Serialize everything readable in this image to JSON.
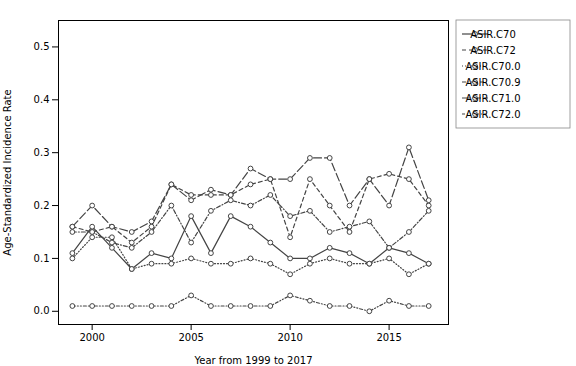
{
  "chart_data": {
    "type": "line",
    "xlabel": "Year from 1999 to 2017",
    "ylabel": "Age-Standardized Incidence Rate",
    "x": [
      1999,
      2000,
      2001,
      2002,
      2003,
      2004,
      2005,
      2006,
      2007,
      2008,
      2009,
      2010,
      2011,
      2012,
      2013,
      2014,
      2015,
      2016,
      2017
    ],
    "series": [
      {
        "name": "ASIR.C70",
        "color": "#444444",
        "line_style": "solid",
        "marker": "circle",
        "values": [
          0.11,
          0.16,
          0.12,
          0.08,
          0.11,
          0.1,
          0.18,
          0.11,
          0.18,
          0.16,
          0.13,
          0.1,
          0.1,
          0.12,
          0.11,
          0.09,
          0.12,
          0.11,
          0.09
        ]
      },
      {
        "name": "ASIR.C72",
        "color": "#444444",
        "line_style": "dashed",
        "marker": "circle",
        "values": [
          0.16,
          0.15,
          0.16,
          0.13,
          0.16,
          0.24,
          0.22,
          0.22,
          0.22,
          0.24,
          0.25,
          0.14,
          0.25,
          0.2,
          0.15,
          0.25,
          0.26,
          0.25,
          0.2
        ]
      },
      {
        "name": "ASIR.C70.0",
        "color": "#444444",
        "line_style": "dotted",
        "marker": "circle",
        "values": [
          0.1,
          0.14,
          0.14,
          0.08,
          0.09,
          0.09,
          0.1,
          0.09,
          0.09,
          0.1,
          0.09,
          0.07,
          0.09,
          0.1,
          0.09,
          0.09,
          0.1,
          0.07,
          0.09
        ]
      },
      {
        "name": "ASIR.C70.9",
        "color": "#444444",
        "line_style": "dotdash",
        "marker": "circle",
        "values": [
          0.15,
          0.15,
          0.13,
          0.12,
          0.15,
          0.2,
          0.13,
          0.19,
          0.21,
          0.2,
          0.22,
          0.18,
          0.19,
          0.15,
          0.16,
          0.17,
          0.12,
          0.15,
          0.19
        ]
      },
      {
        "name": "ASIR.C71.0",
        "color": "#444444",
        "line_style": "longdash",
        "marker": "circle",
        "values": [
          0.16,
          0.2,
          0.16,
          0.15,
          0.17,
          0.24,
          0.21,
          0.23,
          0.22,
          0.27,
          0.25,
          0.25,
          0.29,
          0.29,
          0.2,
          0.25,
          0.2,
          0.31,
          0.21
        ]
      },
      {
        "name": "ASIR.C72.0",
        "color": "#444444",
        "line_style": "twodash",
        "marker": "circle",
        "values": [
          0.01,
          0.01,
          0.01,
          0.01,
          0.01,
          0.01,
          0.03,
          0.01,
          0.01,
          0.01,
          0.01,
          0.03,
          0.02,
          0.01,
          0.01,
          0.0,
          0.02,
          0.01,
          0.01
        ]
      }
    ],
    "xlim": [
      1998.3,
      2018.0
    ],
    "ylim": [
      -0.025,
      0.55
    ],
    "xticks": [
      2000,
      2005,
      2010,
      2015
    ],
    "yticks": [
      {
        "value": 0.0,
        "label": "0.0"
      },
      0.1,
      0.2,
      0.3,
      0.4,
      0.5
    ],
    "legend": "upper right"
  }
}
